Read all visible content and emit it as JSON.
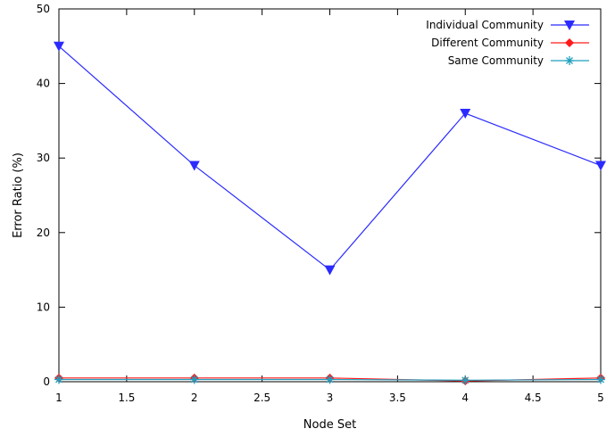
{
  "chart_data": {
    "type": "line",
    "title": "",
    "xlabel": "Node Set",
    "ylabel": "Error Ratio (%)",
    "xlim": [
      1,
      5
    ],
    "ylim": [
      0,
      50
    ],
    "x_ticks": [
      1,
      1.5,
      2,
      2.5,
      3,
      3.5,
      4,
      4.5,
      5
    ],
    "x_tick_labels": [
      "1",
      "1.5",
      "2",
      "2.5",
      "3",
      "3.5",
      "4",
      "4.5",
      "5"
    ],
    "y_ticks": [
      0,
      10,
      20,
      30,
      40,
      50
    ],
    "y_tick_labels": [
      "0",
      "10",
      "20",
      "30",
      "40",
      "50"
    ],
    "grid": false,
    "legend_position": "top-right",
    "x": [
      1,
      2,
      3,
      4,
      5
    ],
    "series": [
      {
        "name": "Individual Community",
        "values": [
          45,
          29,
          15,
          36,
          29
        ],
        "color": "#2b2bff",
        "marker": "triangle-down"
      },
      {
        "name": "Different Community",
        "values": [
          0.5,
          0.5,
          0.5,
          0.1,
          0.5
        ],
        "color": "#ff1a1a",
        "marker": "diamond"
      },
      {
        "name": "Same Community",
        "values": [
          0.3,
          0.3,
          0.3,
          0.2,
          0.3
        ],
        "color": "#1f9fbf",
        "marker": "asterisk"
      }
    ]
  }
}
